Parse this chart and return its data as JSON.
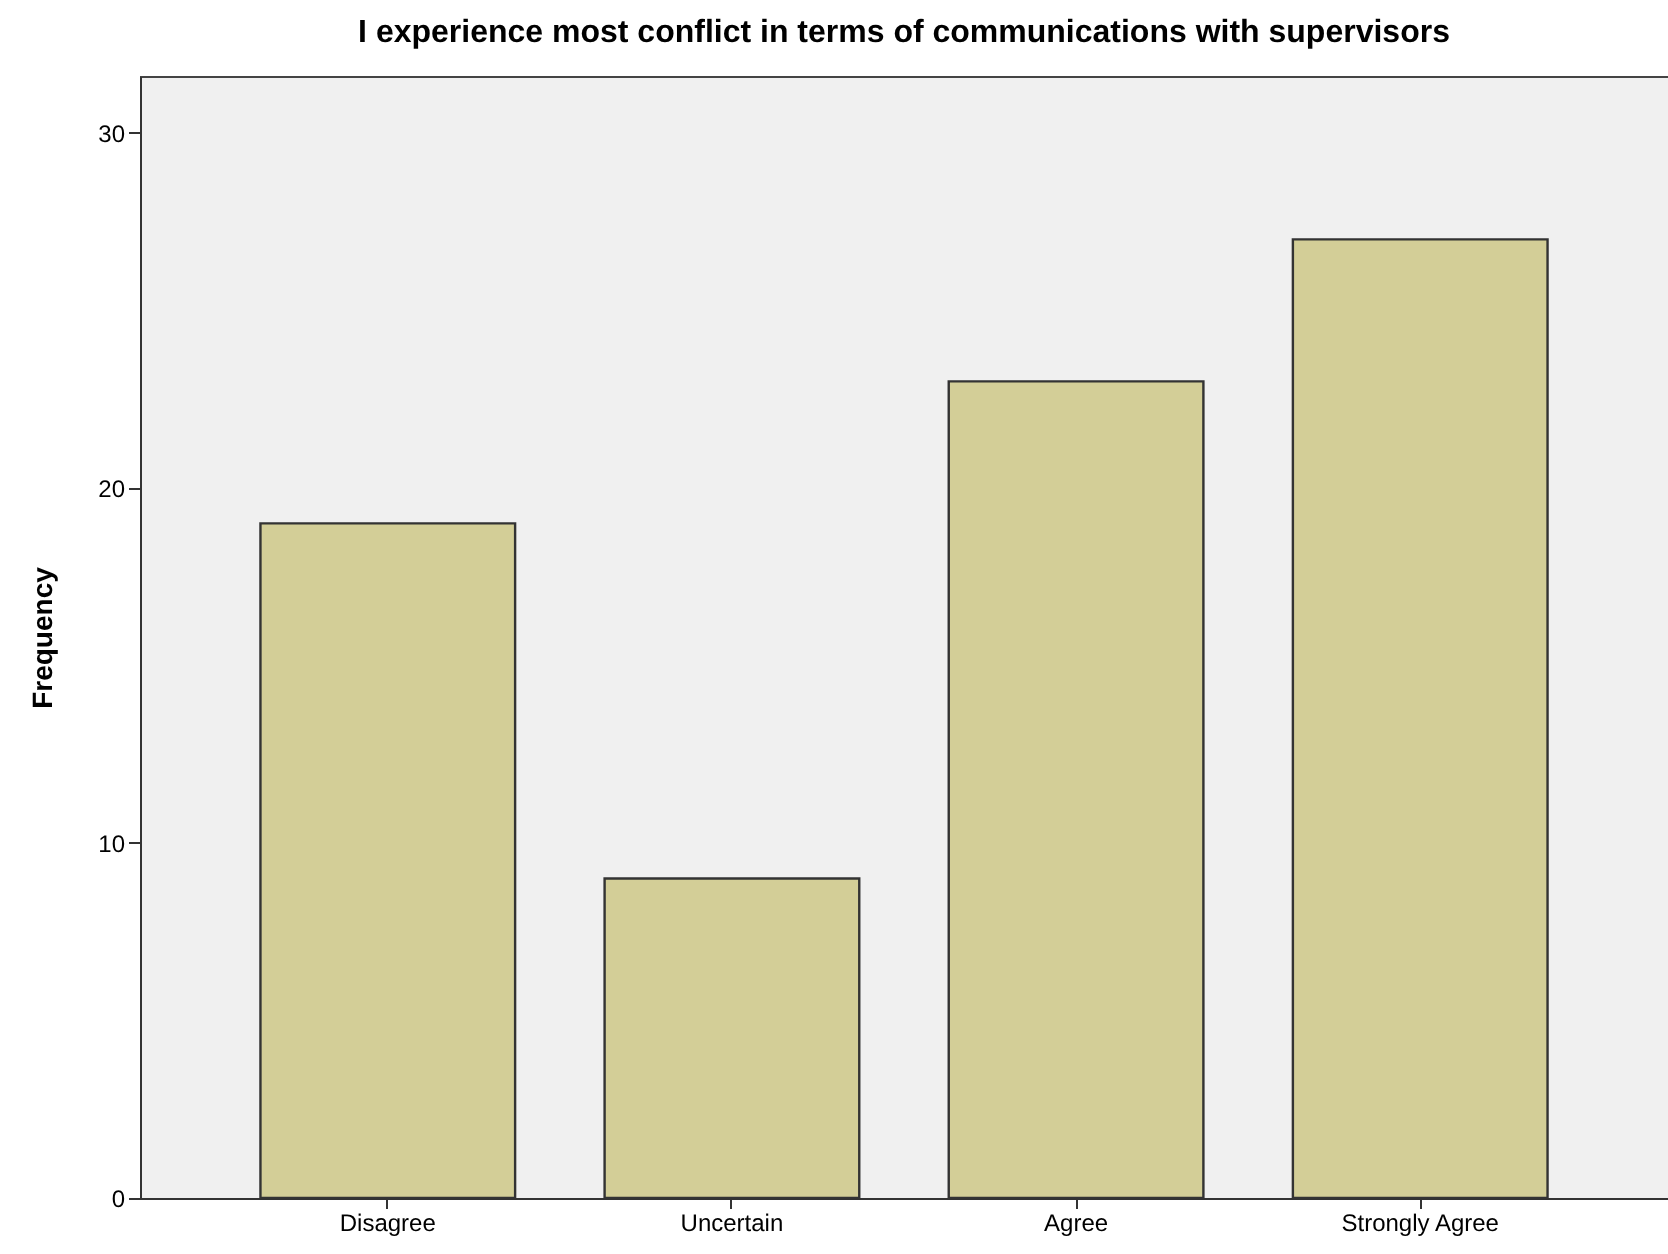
{
  "chart_data": {
    "type": "bar",
    "title": "I experience most conflict in terms of communications with supervisors",
    "ylabel": "Frequency",
    "categories": [
      "Disagree",
      "Uncertain",
      "Agree",
      "Strongly Agree"
    ],
    "values": [
      19,
      9,
      23,
      27
    ],
    "color": "#d3ce97",
    "ylim": [
      0,
      31.6
    ],
    "yticks": [
      0,
      10,
      20,
      30
    ]
  }
}
